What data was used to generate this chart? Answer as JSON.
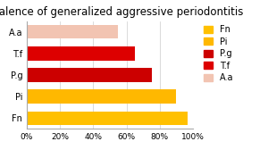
{
  "title": "Prevalence of generalized aggressive periodontitis",
  "categories": [
    "Fn",
    "Pi",
    "P.g",
    "T.f",
    "A.a"
  ],
  "values": [
    0.97,
    0.9,
    0.75,
    0.65,
    0.55
  ],
  "bar_colors_exact": {
    "Fn": "#FFC000",
    "Pi": "#FFB800",
    "P.g": "#CC0000",
    "T.f": "#DD0000",
    "A.a": "#F2C4B2"
  },
  "legend_labels": [
    "Fn",
    "Pi",
    "P.g",
    "T.f",
    "A.a"
  ],
  "legend_colors": [
    "#FFC000",
    "#FFB800",
    "#CC0000",
    "#DD0000",
    "#F2C4B2"
  ],
  "xtick_labels": [
    "0%",
    "20%",
    "40%",
    "60%",
    "80%",
    "100%"
  ],
  "xtick_values": [
    0,
    0.2,
    0.4,
    0.6,
    0.8,
    1.0
  ],
  "background_color": "#FFFFFF",
  "title_fontsize": 8.5,
  "label_fontsize": 7,
  "tick_fontsize": 6.5,
  "legend_fontsize": 7
}
